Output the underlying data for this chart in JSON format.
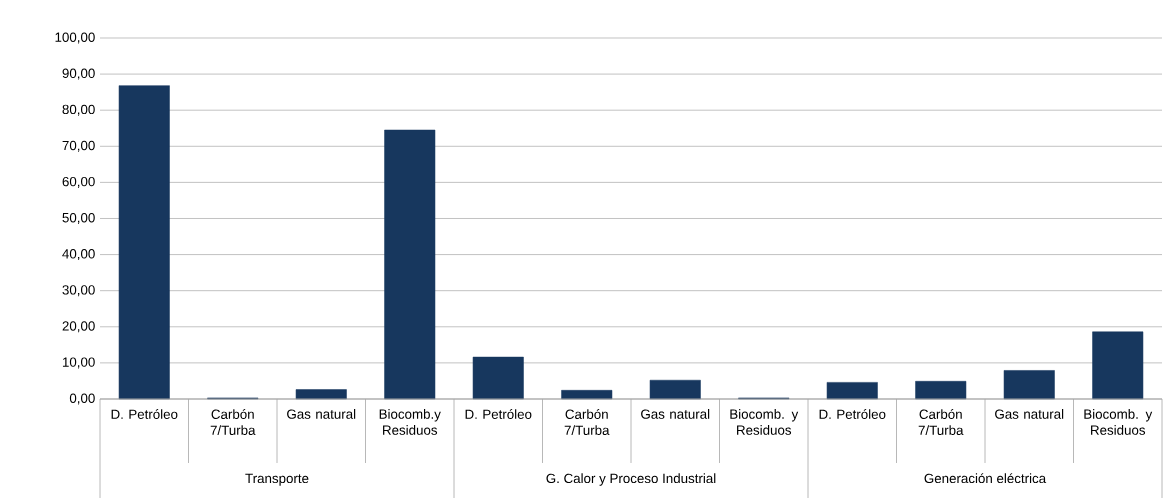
{
  "chart_data": {
    "type": "bar",
    "categories": [
      "D. Petróleo",
      "Carbón 7/Turba",
      "Gas natural",
      "Biocomb.y Residuos",
      "D. Petróleo",
      "Carbón 7/Turba",
      "Gas natural",
      "Biocomb. y Residuos",
      "D. Petróleo",
      "Carbón 7/Turba",
      "Gas natural",
      "Biocomb. y Residuos"
    ],
    "values": [
      86.8,
      0.3,
      2.6,
      74.5,
      11.6,
      2.4,
      5.2,
      0.3,
      4.6,
      4.9,
      7.9,
      18.6
    ],
    "color": "#17375e",
    "ylim": [
      0,
      100
    ],
    "yticks": [
      {
        "value": 0,
        "label": "0,00"
      },
      {
        "value": 10,
        "label": "10,00"
      },
      {
        "value": 20,
        "label": "20,00"
      },
      {
        "value": 30,
        "label": "30,00"
      },
      {
        "value": 40,
        "label": "40,00"
      },
      {
        "value": 50,
        "label": "50,00"
      },
      {
        "value": 60,
        "label": "60,00"
      },
      {
        "value": 70,
        "label": "70,00"
      },
      {
        "value": 80,
        "label": "80,00"
      },
      {
        "value": 90,
        "label": "90,00"
      },
      {
        "value": 100,
        "label": "100,00"
      }
    ],
    "grid": "y",
    "annotations": [
      "Transporte",
      "G. Calor  y Proceso Industrial",
      "Generación eléctrica"
    ]
  }
}
